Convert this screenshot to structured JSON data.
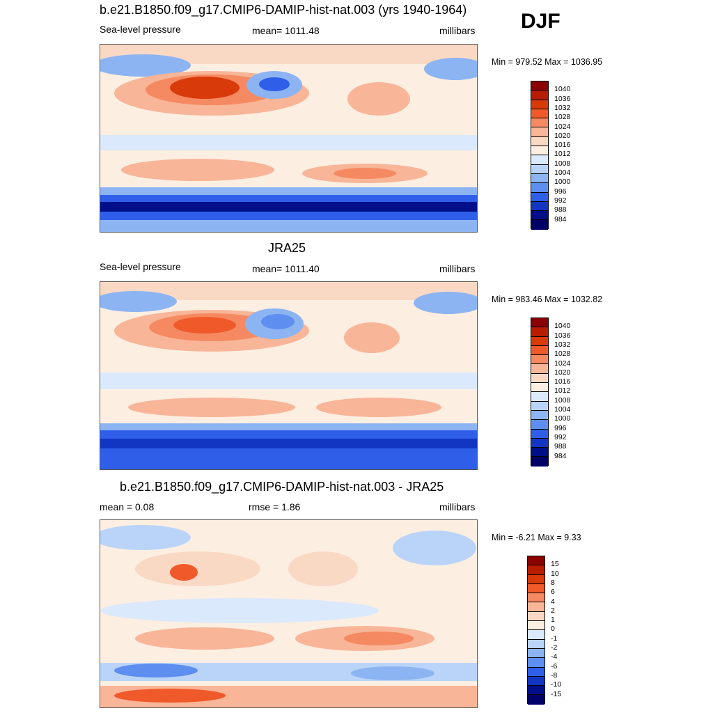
{
  "season": "DJF",
  "panels": [
    {
      "title": "b.e21.B1850.f09_g17.CMIP6-DAMIP-hist-nat.003 (yrs 1940-1964)",
      "left": "Sea-level pressure",
      "center": "mean= 1011.48",
      "right": "millibars",
      "minmax": "Min = 979.52 Max = 1036.95",
      "palette": "abs"
    },
    {
      "title": "JRA25",
      "left": "Sea-level pressure",
      "center": "mean= 1011.40",
      "right": "millibars",
      "minmax": "Min = 983.46 Max = 1032.82",
      "palette": "abs"
    },
    {
      "title": "b.e21.B1850.f09_g17.CMIP6-DAMIP-hist-nat.003 - JRA25",
      "left": "mean =   0.08",
      "center": "rmse =   1.86",
      "right": "millibars",
      "minmax": "Min =  -6.21 Max =   9.33",
      "palette": "diff"
    }
  ],
  "colorbars": {
    "abs": {
      "labels": [
        "1040",
        "1036",
        "1032",
        "1028",
        "1024",
        "1020",
        "1016",
        "1012",
        "1008",
        "1004",
        "1000",
        "996",
        "992",
        "988",
        "984"
      ],
      "colors": [
        "#8b0000",
        "#b81d00",
        "#d83a0a",
        "#f05a2a",
        "#f58a62",
        "#f8b597",
        "#fad9c4",
        "#fdeee2",
        "#dae9fb",
        "#b9d4f8",
        "#8db4f2",
        "#5d8ef0",
        "#2f5fe8",
        "#1236c2",
        "#000e8a",
        "#000066"
      ]
    },
    "diff": {
      "labels": [
        "15",
        "10",
        "8",
        "6",
        "4",
        "2",
        "1",
        "0",
        "-1",
        "-2",
        "-4",
        "-6",
        "-8",
        "-10",
        "-15"
      ],
      "colors": [
        "#8b0000",
        "#b81d00",
        "#d83a0a",
        "#f05a2a",
        "#f58a62",
        "#f8b597",
        "#fad9c4",
        "#fdeee2",
        "#dae9fb",
        "#b9d4f8",
        "#8db4f2",
        "#5d8ef0",
        "#2f5fe8",
        "#1236c2",
        "#000e8a",
        "#000066"
      ]
    }
  }
}
